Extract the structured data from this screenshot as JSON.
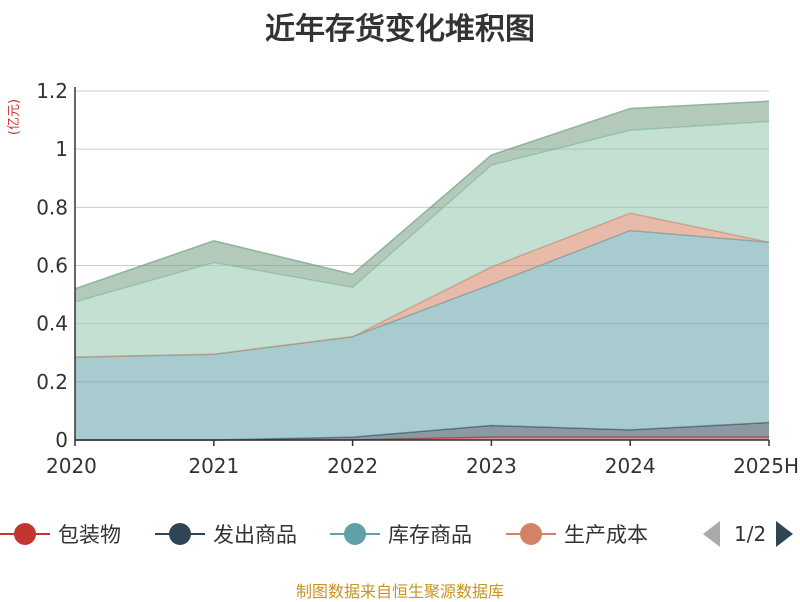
{
  "chart_data": {
    "type": "area",
    "stacked": true,
    "title": "近年存货变化堆积图",
    "unit_label": "(亿元)",
    "categories": [
      "2020",
      "2021",
      "2022",
      "2023",
      "2024",
      "2025H"
    ],
    "ylim": [
      0,
      1.2
    ],
    "yticks": [
      "0",
      "0.2",
      "0.4",
      "0.6",
      "0.8",
      "1",
      "1.2"
    ],
    "grid": true,
    "legend_position": "bottom",
    "series": [
      {
        "name": "包装物",
        "color": "#c23531",
        "values": [
          0.0,
          0.0,
          0.0,
          0.01,
          0.01,
          0.01
        ]
      },
      {
        "name": "发出商品",
        "color": "#2f4554",
        "values": [
          0.0,
          0.0,
          0.01,
          0.04,
          0.025,
          0.05
        ]
      },
      {
        "name": "库存商品",
        "color": "#61a0a8",
        "values": [
          0.285,
          0.295,
          0.345,
          0.485,
          0.685,
          0.62
        ]
      },
      {
        "name": "生产成本",
        "color": "#d48265",
        "values": [
          0.0,
          0.0,
          0.0,
          0.06,
          0.06,
          0.0
        ]
      },
      {
        "name": "",
        "color": "#91c7ae",
        "values": [
          0.19,
          0.315,
          0.17,
          0.35,
          0.285,
          0.415
        ]
      },
      {
        "name": "",
        "color": "#749f83",
        "values": [
          0.045,
          0.075,
          0.045,
          0.035,
          0.075,
          0.07
        ]
      }
    ]
  },
  "legend_pager": {
    "text": "1/2"
  },
  "source_text": "制图数据来自恒生聚源数据库"
}
